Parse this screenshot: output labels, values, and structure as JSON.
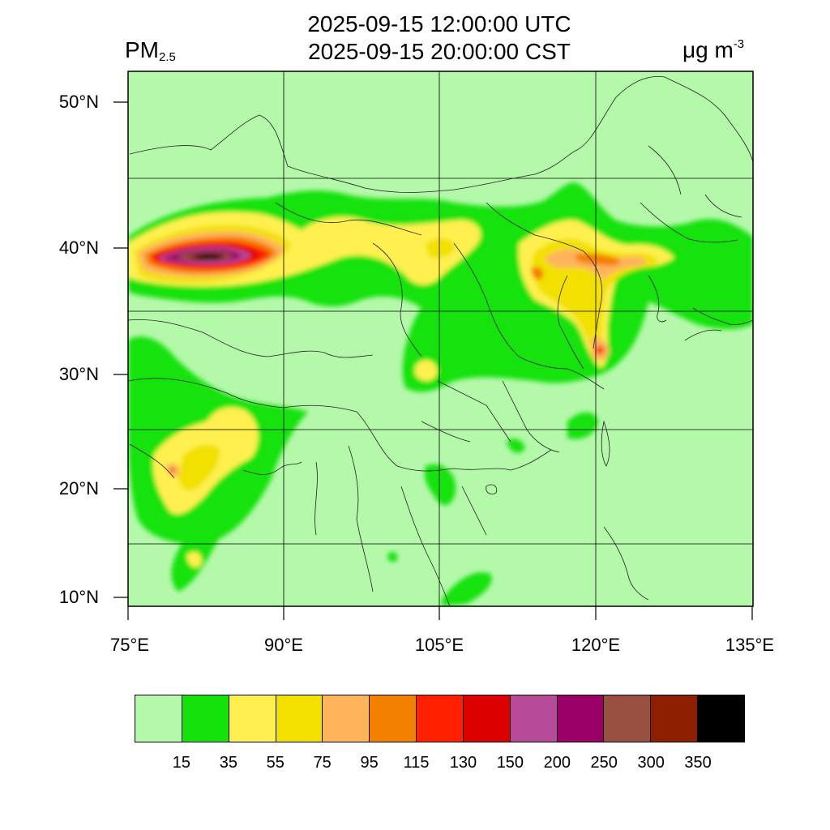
{
  "title": {
    "line1": "2025-09-15 12:00:00 UTC",
    "line2": "2025-09-15 20:00:00 CST"
  },
  "variable": {
    "main": "PM",
    "sub": "2.5"
  },
  "units": {
    "main": "μg m",
    "sup": "-3"
  },
  "axes": {
    "lat_labels": [
      "50°N",
      "40°N",
      "30°N",
      "20°N",
      "10°N"
    ],
    "lon_labels": [
      "75°E",
      "90°E",
      "105°E",
      "120°E",
      "135°E"
    ]
  },
  "colorbar": {
    "colors": [
      "#b4f8aa",
      "#14e20a",
      "#fff050",
      "#f2e000",
      "#ffb45a",
      "#f48000",
      "#ff2000",
      "#dc0000",
      "#b84a9a",
      "#9a0068",
      "#9a5040",
      "#8c2000",
      "#000000"
    ],
    "labels": [
      "15",
      "35",
      "55",
      "75",
      "95",
      "115",
      "130",
      "150",
      "200",
      "250",
      "300",
      "350"
    ]
  },
  "colors": {
    "frame": "#000000",
    "background": "#ffffff",
    "borders": "#222222"
  }
}
